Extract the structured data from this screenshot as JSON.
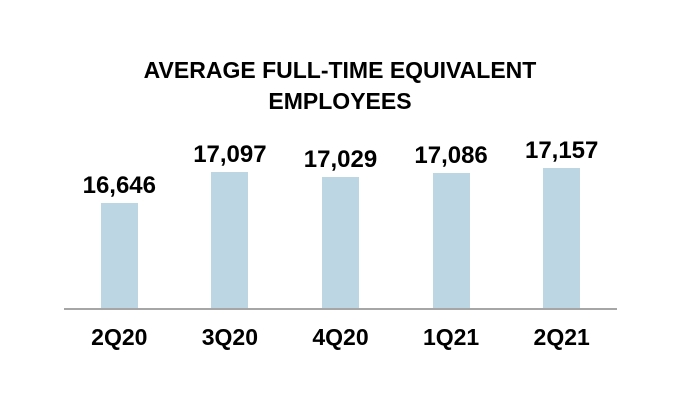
{
  "chart_data": {
    "type": "bar",
    "title": "AVERAGE FULL-TIME EQUIVALENT EMPLOYEES",
    "categories": [
      "2Q20",
      "3Q20",
      "4Q20",
      "1Q21",
      "2Q21"
    ],
    "values": [
      16646,
      17097,
      17029,
      17086,
      17157
    ],
    "value_labels": [
      "16,646",
      "17,097",
      "17,029",
      "17,086",
      "17,157"
    ],
    "xlabel": "",
    "ylabel": "",
    "ylim": [
      15100,
      17600
    ],
    "grid": false,
    "legend": false,
    "bar_color": "#BCD6E3",
    "axis_line_color": "#A6A6A6",
    "text_color": "#000000"
  }
}
